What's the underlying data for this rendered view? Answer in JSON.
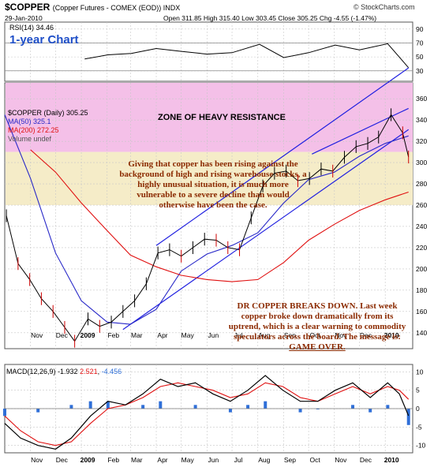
{
  "header": {
    "symbol": "$COPPER",
    "description": "(Copper Futures - COMEX (EOD)) INDX",
    "source": "© StockCharts.com",
    "date": "29-Jan-2010",
    "quote": "Open 311.85  High 315.40  Low 303.45  Close 305.25  Chg -4.55 (-1.47%)"
  },
  "annotations": {
    "chart_label": "1-year Chart",
    "resistance": "ZONE OF HEAVY RESISTANCE",
    "commentary_1": "Giving that copper has been rising against the background of high and rising warehouse stocks, a highly unusual situation, it is much more vulnerable to a severe decline than would otherwise have been the case.",
    "commentary_2_lead": "DR COPPER BREAKS DOWN. Last week copper broke down dramatically from its uptrend, which is a clear warning to commodity speculators across the board. The message is: ",
    "commentary_2_tail": "GAME OVER."
  },
  "colors": {
    "price": "#000000",
    "down_bar": "#cc0000",
    "ma50": "#2828c8",
    "ma200": "#e01010",
    "channel": "#2020e0",
    "resistance_zone": "#f4c0e8",
    "lower_zone": "#f5ecc8",
    "macd": "#000000",
    "signal": "#e01010",
    "histogram": "#2f6fd8",
    "annotation": "#8b2a00",
    "chart_label": "#1f4fc8"
  },
  "chart_data": [
    {
      "type": "line",
      "panel": "RSI",
      "legend": "RSI(14) 34.46",
      "yticks": [
        30,
        50,
        70,
        90
      ],
      "ylim": [
        15,
        100
      ],
      "x": [
        "2009-01-05",
        "2009-02-02",
        "2009-03-02",
        "2009-04-01",
        "2009-05-01",
        "2009-06-01",
        "2009-07-01",
        "2009-08-03",
        "2009-09-01",
        "2009-10-01",
        "2009-11-02",
        "2009-12-01",
        "2010-01-04",
        "2010-01-29"
      ],
      "values": [
        47,
        53,
        55,
        62,
        58,
        54,
        56,
        68,
        49,
        56,
        67,
        60,
        69,
        34.46
      ]
    },
    {
      "type": "line",
      "panel": "price",
      "legend": [
        "$COPPER (Daily) 305.25",
        "MA(50) 325.1",
        "MA(200) 272.25",
        "Volume undef"
      ],
      "x_tick_labels": [
        "Nov",
        "Dec",
        "2009",
        "Feb",
        "Mar",
        "Apr",
        "May",
        "Jun",
        "Jul",
        "Aug",
        "Sep",
        "Oct",
        "Nov",
        "Dec",
        "2010"
      ],
      "x_tick_dates": [
        "2008-11-01",
        "2008-12-01",
        "2009-01-01",
        "2009-02-01",
        "2009-03-01",
        "2009-04-01",
        "2009-05-01",
        "2009-06-01",
        "2009-07-01",
        "2009-08-01",
        "2009-09-01",
        "2009-10-01",
        "2009-11-01",
        "2009-12-01",
        "2010-01-01"
      ],
      "yticks": [
        140,
        160,
        180,
        200,
        220,
        240,
        260,
        280,
        300,
        320,
        340,
        360
      ],
      "ylim": [
        125,
        375
      ],
      "series": [
        {
          "name": "$COPPER (Daily)",
          "x": [
            "2008-10-03",
            "2008-10-17",
            "2008-10-31",
            "2008-11-14",
            "2008-11-28",
            "2008-12-12",
            "2008-12-24",
            "2009-01-09",
            "2009-01-23",
            "2009-02-06",
            "2009-02-20",
            "2009-03-06",
            "2009-03-20",
            "2009-04-03",
            "2009-04-17",
            "2009-05-01",
            "2009-05-15",
            "2009-05-29",
            "2009-06-12",
            "2009-06-26",
            "2009-07-10",
            "2009-07-24",
            "2009-08-07",
            "2009-08-21",
            "2009-09-04",
            "2009-09-18",
            "2009-10-02",
            "2009-10-16",
            "2009-10-30",
            "2009-11-13",
            "2009-11-27",
            "2009-12-11",
            "2009-12-24",
            "2010-01-08",
            "2010-01-22",
            "2010-01-29"
          ],
          "values": [
            250,
            205,
            190,
            172,
            160,
            145,
            132,
            153,
            146,
            150,
            160,
            170,
            186,
            215,
            218,
            212,
            220,
            228,
            227,
            220,
            218,
            248,
            278,
            290,
            292,
            283,
            285,
            294,
            292,
            305,
            315,
            318,
            324,
            345,
            328,
            305.25
          ]
        },
        {
          "name": "MA(50)",
          "x": [
            "2008-10-01",
            "2008-11-01",
            "2008-12-01",
            "2009-01-01",
            "2009-02-01",
            "2009-03-01",
            "2009-04-01",
            "2009-05-01",
            "2009-06-01",
            "2009-07-01",
            "2009-08-01",
            "2009-09-01",
            "2009-10-01",
            "2009-11-01",
            "2009-12-01",
            "2010-01-01",
            "2010-01-29"
          ],
          "values": [
            345,
            285,
            215,
            170,
            150,
            148,
            162,
            198,
            214,
            222,
            234,
            262,
            284,
            291,
            306,
            318,
            325.1
          ]
        },
        {
          "name": "MA(200)",
          "x": [
            "2008-11-01",
            "2008-12-01",
            "2009-01-01",
            "2009-02-01",
            "2009-03-01",
            "2009-04-01",
            "2009-05-01",
            "2009-06-01",
            "2009-07-01",
            "2009-08-01",
            "2009-09-01",
            "2009-10-01",
            "2009-11-01",
            "2009-12-01",
            "2010-01-01",
            "2010-01-29"
          ],
          "values": [
            312,
            291,
            262,
            236,
            213,
            202,
            194,
            190,
            188,
            190,
            206,
            227,
            242,
            255,
            265,
            272.25
          ]
        }
      ],
      "trendlines": [
        {
          "x": [
            "2009-02-20",
            "2010-01-29"
          ],
          "values": [
            143,
            331
          ]
        },
        {
          "x": [
            "2009-04-01",
            "2010-01-29"
          ],
          "values": [
            222,
            389
          ]
        },
        {
          "x": [
            "2009-10-05",
            "2010-01-29"
          ],
          "values": [
            308,
            351
          ]
        }
      ],
      "resistance_zone": [
        310,
        375
      ]
    },
    {
      "type": "line",
      "panel": "MACD",
      "legend": [
        "MACD(12,26,9) -1.932",
        "2.521",
        "-4.456"
      ],
      "yticks": [
        -10,
        -5,
        0,
        5,
        10
      ],
      "ylim": [
        -12,
        12
      ],
      "x_tick_labels": [
        "Nov",
        "Dec",
        "2009",
        "Feb",
        "Mar",
        "Apr",
        "May",
        "Jun",
        "Jul",
        "Aug",
        "Sep",
        "Oct",
        "Nov",
        "Dec",
        "2010"
      ],
      "x_tick_dates": [
        "2008-11-01",
        "2008-12-01",
        "2009-01-01",
        "2009-02-01",
        "2009-03-01",
        "2009-04-01",
        "2009-05-01",
        "2009-06-01",
        "2009-07-01",
        "2009-08-01",
        "2009-09-01",
        "2009-10-01",
        "2009-11-01",
        "2009-12-01",
        "2010-01-01"
      ],
      "series": [
        {
          "name": "MACD(12,26,9)",
          "x": [
            "2008-10-01",
            "2008-10-20",
            "2008-11-10",
            "2008-12-01",
            "2008-12-20",
            "2009-01-12",
            "2009-02-02",
            "2009-02-23",
            "2009-03-16",
            "2009-04-06",
            "2009-04-27",
            "2009-05-18",
            "2009-06-08",
            "2009-06-29",
            "2009-07-20",
            "2009-08-10",
            "2009-08-31",
            "2009-09-21",
            "2009-10-12",
            "2009-11-02",
            "2009-11-23",
            "2009-12-14",
            "2010-01-04",
            "2010-01-18",
            "2010-01-29"
          ],
          "values": [
            -4,
            -8,
            -10,
            -11,
            -8,
            -2,
            2,
            1,
            4,
            8,
            6,
            7,
            4,
            2,
            5,
            9,
            5,
            2,
            2,
            5,
            7,
            3,
            7,
            4,
            -1.932
          ]
        },
        {
          "name": "Signal",
          "x": [
            "2008-10-01",
            "2008-10-20",
            "2008-11-10",
            "2008-12-01",
            "2008-12-20",
            "2009-01-12",
            "2009-02-02",
            "2009-02-23",
            "2009-03-16",
            "2009-04-06",
            "2009-04-27",
            "2009-05-18",
            "2009-06-08",
            "2009-06-29",
            "2009-07-20",
            "2009-08-10",
            "2009-08-31",
            "2009-09-21",
            "2009-10-12",
            "2009-11-02",
            "2009-11-23",
            "2009-12-14",
            "2010-01-04",
            "2010-01-18",
            "2010-01-29"
          ],
          "values": [
            -2,
            -6,
            -9,
            -10,
            -9,
            -4,
            0,
            1,
            3,
            6,
            7,
            6,
            5,
            3,
            4,
            7,
            6,
            3,
            2,
            4,
            6,
            4,
            6,
            5,
            2.521
          ]
        },
        {
          "name": "Histogram",
          "x": [
            "2008-10-01",
            "2008-11-10",
            "2008-12-20",
            "2009-01-12",
            "2009-02-02",
            "2009-03-16",
            "2009-04-06",
            "2009-05-18",
            "2009-06-29",
            "2009-07-20",
            "2009-08-10",
            "2009-09-21",
            "2009-10-12",
            "2009-11-23",
            "2009-12-14",
            "2010-01-04",
            "2010-01-29"
          ],
          "values": [
            -2,
            -1,
            1,
            2,
            2,
            1,
            2,
            1,
            -1,
            1,
            2,
            -1,
            0,
            1,
            -1,
            1,
            -4.456
          ]
        }
      ]
    }
  ]
}
